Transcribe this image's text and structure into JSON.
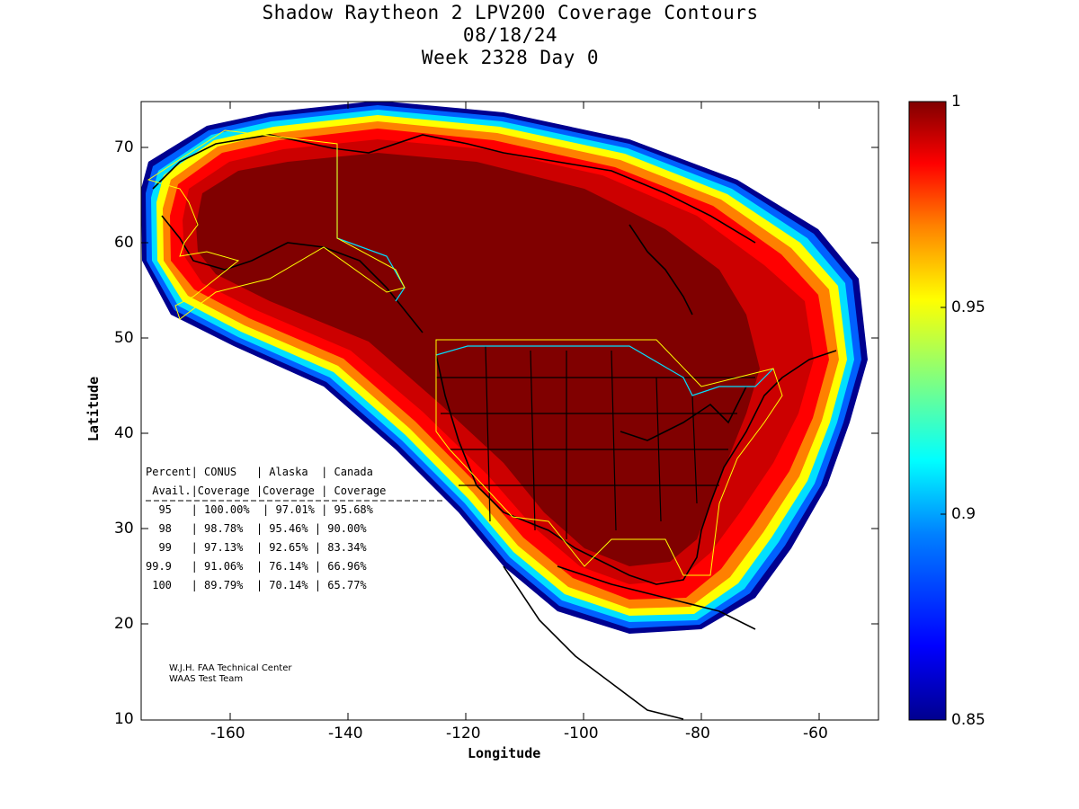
{
  "title": {
    "line1": "Shadow Raytheon 2 LPV200 Coverage Contours",
    "line2": "08/18/24",
    "line3": "Week 2328 Day 0"
  },
  "axes": {
    "xlabel": "Longitude",
    "ylabel": "Latitude",
    "xticks": [
      "-160",
      "-140",
      "-120",
      "-100",
      "-80",
      "-60"
    ],
    "yticks": [
      "70",
      "60",
      "50",
      "40",
      "30",
      "20",
      "10"
    ],
    "xlim": [
      -175,
      -50
    ],
    "ylim": [
      10,
      75
    ]
  },
  "colorbar": {
    "ticks": [
      "1",
      "0.95",
      "0.9",
      "0.85"
    ],
    "range": [
      0.85,
      1
    ],
    "colors": [
      "#00008f",
      "#0000ff",
      "#0080ff",
      "#00ffff",
      "#80ff80",
      "#ffff00",
      "#ff8000",
      "#ff0000",
      "#800000"
    ]
  },
  "table": {
    "header1": "Percent| CONUS   | Alaska  | Canada",
    "header2": " Avail.|Coverage |Coverage | Coverage",
    "rows": [
      "  95   | 100.00%  | 97.01% | 95.68%",
      "  98   | 98.78%  | 95.46% | 90.00%",
      "  99   | 97.13%  | 92.65% | 83.34%",
      "99.9   | 91.06%  | 76.14% | 66.96%",
      " 100   | 89.79%  | 70.14% | 65.77%"
    ]
  },
  "credit": {
    "line1": "W.J.H. FAA Technical Center",
    "line2": "WAAS Test Team"
  },
  "chart_data": {
    "type": "heatmap",
    "title": "Shadow Raytheon 2 LPV200 Coverage Contours",
    "xlabel": "Longitude",
    "ylabel": "Latitude",
    "xlim": [
      -175,
      -50
    ],
    "ylim": [
      10,
      75
    ],
    "colorbar_range": [
      0.85,
      1
    ],
    "series": [
      {
        "name": "CONUS",
        "values": [
          100.0,
          98.78,
          97.13,
          91.06,
          89.79
        ]
      },
      {
        "name": "Alaska",
        "values": [
          97.01,
          95.46,
          92.65,
          76.14,
          70.14
        ]
      },
      {
        "name": "Canada",
        "values": [
          95.68,
          90.0,
          83.34,
          66.96,
          65.77
        ]
      }
    ],
    "categories": [
      "95",
      "98",
      "99",
      "99.9",
      "100"
    ]
  }
}
